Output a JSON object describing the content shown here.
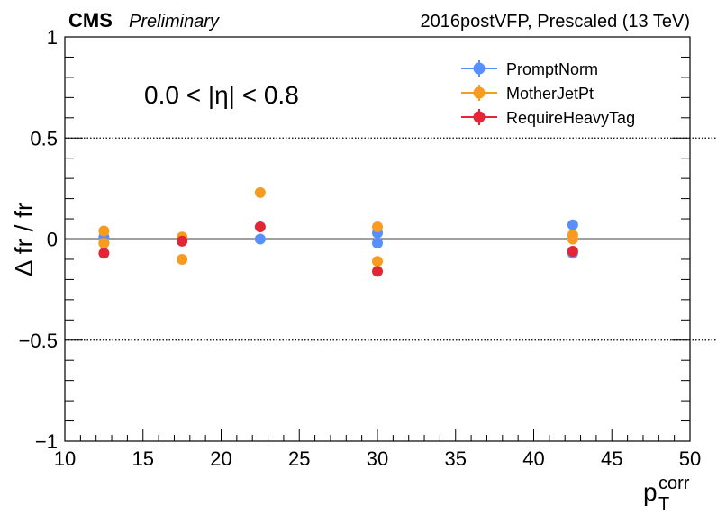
{
  "header": {
    "experiment": "CMS",
    "status": "Preliminary",
    "run_info": "2016postVFP, Prescaled (13 TeV)"
  },
  "region_label": "0.0 < |η| < 0.8",
  "chart_data": {
    "type": "scatter",
    "xlabel": "p",
    "xlabel_sub": "T",
    "xlabel_sup": "corr",
    "ylabel": "Δ fr / fr",
    "xlim": [
      10,
      50
    ],
    "ylim": [
      -1,
      1
    ],
    "x_ticks": [
      10,
      15,
      20,
      25,
      30,
      35,
      40,
      45,
      50
    ],
    "y_ticks": [
      -1,
      -0.5,
      0,
      0.5,
      1
    ],
    "y_tick_labels": [
      "−1",
      "−0.5",
      "0",
      "0.5",
      "1"
    ],
    "reference_lines": [
      {
        "y": 0.5,
        "style": "dotted"
      },
      {
        "y": -0.5,
        "style": "dotted"
      },
      {
        "y": 0,
        "style": "solid"
      }
    ],
    "legend_position": "top-right",
    "series": [
      {
        "name": "PromptNorm",
        "color": "#5790fc",
        "points": [
          {
            "x": 12.5,
            "y": 0.01
          },
          {
            "x": 12.5,
            "y": -0.02
          },
          {
            "x": 17.5,
            "y": -0.01
          },
          {
            "x": 22.5,
            "y": 0.0
          },
          {
            "x": 30.0,
            "y": 0.03
          },
          {
            "x": 30.0,
            "y": -0.02
          },
          {
            "x": 42.5,
            "y": 0.07
          },
          {
            "x": 42.5,
            "y": -0.07
          }
        ]
      },
      {
        "name": "MotherJetPt",
        "color": "#f89c20",
        "points": [
          {
            "x": 12.5,
            "y": 0.04
          },
          {
            "x": 12.5,
            "y": -0.02
          },
          {
            "x": 17.5,
            "y": 0.01
          },
          {
            "x": 17.5,
            "y": -0.1
          },
          {
            "x": 22.5,
            "y": 0.23
          },
          {
            "x": 30.0,
            "y": 0.06
          },
          {
            "x": 30.0,
            "y": -0.11
          },
          {
            "x": 42.5,
            "y": 0.02
          },
          {
            "x": 42.5,
            "y": 0.0
          }
        ]
      },
      {
        "name": "RequireHeavyTag",
        "color": "#e42536",
        "points": [
          {
            "x": 12.5,
            "y": -0.07
          },
          {
            "x": 17.5,
            "y": -0.01
          },
          {
            "x": 22.5,
            "y": 0.06
          },
          {
            "x": 30.0,
            "y": -0.16
          },
          {
            "x": 42.5,
            "y": -0.06
          }
        ]
      }
    ]
  }
}
